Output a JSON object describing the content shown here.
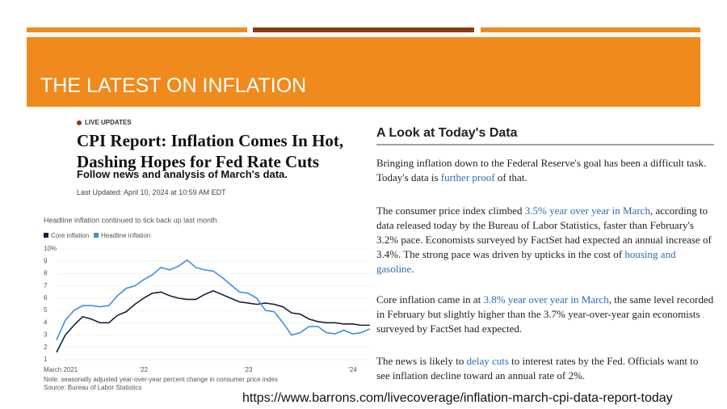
{
  "slide_title": "THE LATEST ON INFLATION",
  "article": {
    "badge": "LIVE UPDATES",
    "headline": [
      "CPI Report: Inflation Comes In Hot,",
      "Dashing Hopes for Fed Rate Cuts"
    ],
    "subhead": "Follow news and analysis of March's data.",
    "updated": "Last Updated: April 10, 2024 at 10:59 AM EDT"
  },
  "chart_data": {
    "type": "line",
    "title": "Headline inflation continued to tick back up last month.",
    "categories": [
      "March 2021",
      null,
      null,
      null,
      null,
      null,
      null,
      null,
      null,
      null,
      "’22",
      null,
      null,
      null,
      null,
      null,
      null,
      null,
      null,
      null,
      null,
      null,
      "’23",
      null,
      null,
      null,
      null,
      null,
      null,
      null,
      null,
      null,
      null,
      null,
      "’24",
      null,
      null
    ],
    "series": [
      {
        "name": "Core inflation",
        "color": "#14213d",
        "values": [
          1.6,
          3.0,
          3.8,
          4.5,
          4.3,
          4.0,
          4.0,
          4.6,
          4.9,
          5.5,
          6.0,
          6.4,
          6.5,
          6.2,
          6.0,
          5.9,
          5.9,
          6.3,
          6.6,
          6.3,
          6.0,
          5.7,
          5.6,
          5.5,
          5.6,
          5.5,
          5.3,
          4.8,
          4.7,
          4.3,
          4.1,
          4.0,
          4.0,
          3.9,
          3.9,
          3.8,
          3.8
        ]
      },
      {
        "name": "Headline inflation",
        "color": "#3b8ee8",
        "values": [
          2.6,
          4.2,
          5.0,
          5.4,
          5.4,
          5.3,
          5.4,
          6.2,
          6.8,
          7.0,
          7.5,
          7.9,
          8.5,
          8.3,
          8.6,
          9.1,
          8.5,
          8.3,
          8.2,
          7.7,
          7.1,
          6.5,
          6.4,
          6.0,
          5.0,
          4.9,
          4.0,
          3.0,
          3.2,
          3.7,
          3.7,
          3.2,
          3.1,
          3.4,
          3.1,
          3.2,
          3.5
        ]
      }
    ],
    "ylim": [
      1,
      10
    ],
    "yticks": [
      1,
      2,
      3,
      4,
      5,
      6,
      7,
      8,
      9,
      {
        "value": 10,
        "label": "10%"
      }
    ],
    "grid": true,
    "note": "Note: seasonally adjusted year-over-year percent change in consumer price index",
    "source": "Source: Bureau of Labor Statistics"
  },
  "panel": {
    "heading": "A Look at Today's Data",
    "paragraphs": [
      [
        {
          "text": "Bringing inflation down to the Federal Reserve's goal has been a difficult task. Today's data is "
        },
        {
          "text": "further proof",
          "link": true
        },
        {
          "text": " of that."
        }
      ],
      [
        {
          "text": "The consumer price index climbed "
        },
        {
          "text": "3.5% year over year in March",
          "link": true
        },
        {
          "text": ", according to data released today by the Bureau of Labor Statistics, faster than February's 3.2% pace. Economists surveyed by FactSet had expected an annual increase of 3.4%. The strong pace was driven by upticks in the cost of "
        },
        {
          "text": "housing and gasoline",
          "link": true
        },
        {
          "text": "."
        }
      ],
      [
        {
          "text": "Core inflation came in at "
        },
        {
          "text": "3.8% year over year in March",
          "link": true
        },
        {
          "text": ", the same level recorded in February but slightly higher than the 3.7% year-over-year gain economists surveyed by FactSet had expected."
        }
      ],
      [
        {
          "text": "The news is likely to "
        },
        {
          "text": "delay cuts",
          "link": true
        },
        {
          "text": " to interest rates by the Fed. Officials want to see inflation decline toward an annual rate of 2%."
        }
      ]
    ]
  },
  "url": "https://www.barrons.com/livecoverage/inflation-march-cpi-data-report-today"
}
